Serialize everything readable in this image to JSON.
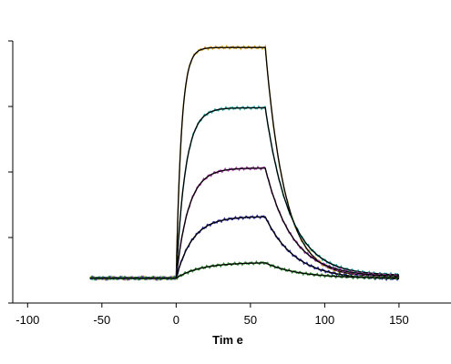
{
  "chart_data": {
    "type": "line",
    "title": "",
    "xlabel": "Tim e",
    "ylabel": "",
    "xlim": [
      -110,
      185
    ],
    "ylim": [
      0,
      100
    ],
    "x_ticks": [
      -100,
      -50,
      0,
      50,
      100,
      150
    ],
    "x_tick_labels": [
      "-100",
      "-50",
      "0",
      "50",
      "100",
      "150"
    ],
    "y_ticks": [
      0,
      25,
      50,
      75,
      100
    ],
    "grid": false,
    "legend": "none",
    "association_start": 0,
    "dissociation_start": 60,
    "baseline": 9.5,
    "series": [
      {
        "color": "#d4a017",
        "fit_color": "#000000",
        "plateau": 97.5,
        "kon": 0.28,
        "koff": 0.075,
        "tail": 10.0
      },
      {
        "color": "#1fa8a0",
        "fit_color": "#000000",
        "plateau": 74.5,
        "kon": 0.16,
        "koff": 0.06,
        "tail": 10.5
      },
      {
        "color": "#b03cb0",
        "fit_color": "#000000",
        "plateau": 51.5,
        "kon": 0.12,
        "koff": 0.055,
        "tail": 10.0
      },
      {
        "color": "#2f2fa8",
        "fit_color": "#000000",
        "plateau": 33.0,
        "kon": 0.09,
        "koff": 0.05,
        "tail": 9.0
      },
      {
        "color": "#2e8b2e",
        "fit_color": "#000000",
        "plateau": 15.5,
        "kon": 0.06,
        "koff": 0.045,
        "tail": 9.5
      }
    ]
  }
}
